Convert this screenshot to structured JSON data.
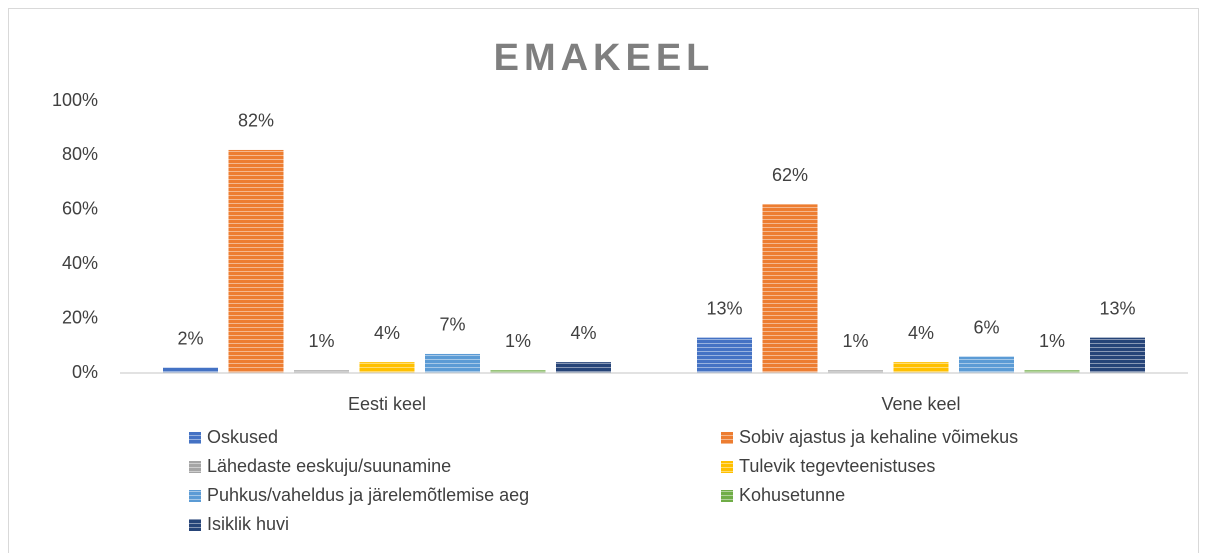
{
  "chart_data": {
    "type": "bar",
    "title": "EMAKEEL",
    "categories": [
      "Eesti keel",
      "Vene keel"
    ],
    "series": [
      {
        "name": "Oskused",
        "color": "#4472c4",
        "values": [
          2,
          13
        ],
        "value_labels": [
          "2%",
          "13%"
        ]
      },
      {
        "name": "Sobiv ajastus ja kehaline võimekus",
        "color": "#ed7d31",
        "values": [
          82,
          62
        ],
        "value_labels": [
          "82%",
          "62%"
        ]
      },
      {
        "name": "Lähedaste eeskuju/suunamine",
        "color": "#a5a5a5",
        "values": [
          1,
          1
        ],
        "value_labels": [
          "1%",
          "1%"
        ]
      },
      {
        "name": "Tulevik tegevteenistuses",
        "color": "#ffc000",
        "values": [
          4,
          4
        ],
        "value_labels": [
          "4%",
          "4%"
        ]
      },
      {
        "name": "Puhkus/vaheldus ja järelemõtlemise aeg",
        "color": "#5b9bd5",
        "values": [
          7,
          6
        ],
        "value_labels": [
          "7%",
          "6%"
        ]
      },
      {
        "name": "Kohusetunne",
        "color": "#70ad47",
        "values": [
          1,
          1
        ],
        "value_labels": [
          "1%",
          "1%"
        ]
      },
      {
        "name": "Isiklik huvi",
        "color": "#264478",
        "values": [
          4,
          13
        ],
        "value_labels": [
          "4%",
          "13%"
        ]
      }
    ],
    "ylim": [
      0,
      100
    ],
    "yticks": [
      {
        "value": 0,
        "label": "0%"
      },
      {
        "value": 20,
        "label": "20%"
      },
      {
        "value": 40,
        "label": "40%"
      },
      {
        "value": 60,
        "label": "60%"
      },
      {
        "value": 80,
        "label": "80%"
      },
      {
        "value": 100,
        "label": "100%"
      }
    ],
    "grid": false,
    "legend": "bottom"
  }
}
